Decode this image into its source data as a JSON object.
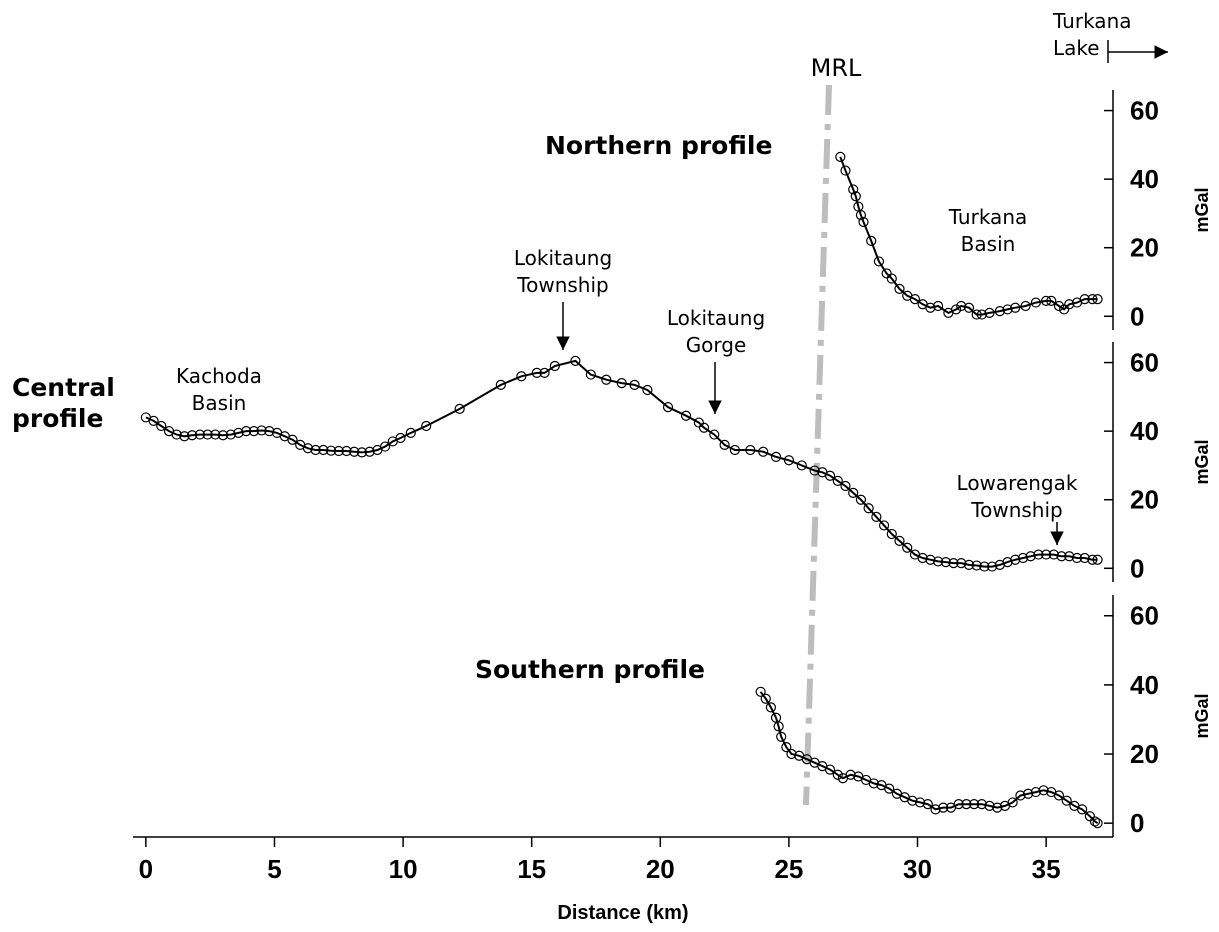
{
  "chart_data": [
    {
      "type": "line",
      "title": "Northern profile",
      "ylabel": "mGal",
      "annotations": [
        "Turkana Basin",
        "MRL",
        "Turkana Lake"
      ],
      "xlim": [
        -0.5,
        37.6
      ],
      "ylim": [
        -4,
        66
      ],
      "yticks": [
        0,
        20,
        40,
        60
      ],
      "series": [
        {
          "name": "Northern",
          "color": "#000000",
          "x": [
            27.0,
            27.2,
            27.5,
            27.6,
            27.7,
            27.8,
            27.9,
            28.2,
            28.5,
            28.8,
            29.0,
            29.3,
            29.6,
            29.9,
            30.2,
            30.5,
            30.8,
            31.2,
            31.5,
            31.7,
            32.0,
            32.3,
            32.5,
            32.8,
            33.2,
            33.5,
            33.8,
            34.2,
            34.6,
            35.0,
            35.2,
            35.5,
            35.7,
            35.9,
            36.2,
            36.5,
            36.8,
            37.0
          ],
          "values": [
            46.5,
            42.5,
            37,
            35,
            32,
            29.5,
            27.5,
            22,
            16,
            12.5,
            11,
            8,
            6,
            5,
            3.5,
            2.5,
            3,
            1,
            2,
            3,
            2.5,
            0.5,
            0.5,
            1,
            1.5,
            2,
            2.5,
            3,
            4,
            4.5,
            4.5,
            3,
            2,
            3.5,
            4,
            5,
            5,
            5
          ]
        }
      ]
    },
    {
      "type": "line",
      "title": "Central profile",
      "ylabel": "mGal",
      "annotations": [
        "Kachoda Basin",
        "Lokitaung Township",
        "Lokitaung Gorge",
        "Lowarengak Township"
      ],
      "xlim": [
        -0.5,
        37.6
      ],
      "ylim": [
        -4,
        66
      ],
      "yticks": [
        0,
        20,
        40,
        60
      ],
      "series": [
        {
          "name": "Central",
          "color": "#000000",
          "x": [
            0,
            0.3,
            0.6,
            0.9,
            1.2,
            1.5,
            1.8,
            2.1,
            2.4,
            2.7,
            3.0,
            3.3,
            3.6,
            3.9,
            4.2,
            4.5,
            4.8,
            5.1,
            5.4,
            5.7,
            6.0,
            6.3,
            6.6,
            6.9,
            7.2,
            7.5,
            7.8,
            8.1,
            8.4,
            8.7,
            9.0,
            9.3,
            9.6,
            9.9,
            10.3,
            10.9,
            12.2,
            13.8,
            14.6,
            15.2,
            15.5,
            15.9,
            16.7,
            17.3,
            17.9,
            18.5,
            19.0,
            19.5,
            20.3,
            21.0,
            21.5,
            21.7,
            22.1,
            22.5,
            22.9,
            23.5,
            24.0,
            24.5,
            25.0,
            25.5,
            26.0,
            26.3,
            26.6,
            26.9,
            27.2,
            27.5,
            27.8,
            28.1,
            28.4,
            28.7,
            29.0,
            29.3,
            29.6,
            29.9,
            30.2,
            30.5,
            30.8,
            31.1,
            31.4,
            31.7,
            32.0,
            32.3,
            32.6,
            32.9,
            33.2,
            33.5,
            33.8,
            34.1,
            34.4,
            34.7,
            35.0,
            35.3,
            35.6,
            35.9,
            36.2,
            36.5,
            36.8,
            37.0
          ],
          "values": [
            44,
            43,
            41.5,
            40,
            39,
            38.5,
            38.8,
            39,
            39,
            39,
            38.8,
            39,
            39.5,
            40,
            40,
            40.2,
            40,
            39.5,
            38.5,
            37.5,
            36,
            35,
            34.5,
            34.5,
            34.3,
            34.2,
            34.2,
            34,
            33.8,
            34,
            34.5,
            35.5,
            37,
            38,
            39.5,
            41.5,
            46.5,
            53.5,
            56,
            57,
            57,
            59,
            60.5,
            56.5,
            55,
            54,
            53.5,
            52,
            47,
            44.5,
            42.5,
            41,
            39,
            36,
            34.5,
            34.5,
            34,
            32.5,
            31.5,
            30,
            28.5,
            28,
            27,
            25.5,
            24,
            22,
            20,
            17.5,
            15,
            12.5,
            10,
            8,
            6,
            4,
            3,
            2.5,
            2,
            1.8,
            1.5,
            1.5,
            1,
            0.8,
            0.5,
            0.5,
            1,
            1.8,
            2.5,
            3,
            3.5,
            4,
            4,
            4,
            3.5,
            3.5,
            3,
            3,
            2.5,
            2.5
          ]
        }
      ]
    },
    {
      "type": "line",
      "title": "Southern profile",
      "ylabel": "mGal",
      "xlabel": "Distance (km)",
      "xlim": [
        -0.5,
        37.6
      ],
      "xticks": [
        0,
        5,
        10,
        15,
        20,
        25,
        30,
        35
      ],
      "ylim": [
        -4,
        66
      ],
      "yticks": [
        0,
        20,
        40,
        60
      ],
      "series": [
        {
          "name": "Southern",
          "color": "#000000",
          "x": [
            23.9,
            24.1,
            24.3,
            24.5,
            24.6,
            24.7,
            24.9,
            25.1,
            25.4,
            25.7,
            26.0,
            26.3,
            26.6,
            26.9,
            27.1,
            27.4,
            27.7,
            28.0,
            28.3,
            28.6,
            28.9,
            29.2,
            29.5,
            29.8,
            30.1,
            30.4,
            30.7,
            31.0,
            31.3,
            31.6,
            31.9,
            32.2,
            32.5,
            32.8,
            33.1,
            33.4,
            33.7,
            34.0,
            34.3,
            34.6,
            34.9,
            35.2,
            35.5,
            35.8,
            36.1,
            36.4,
            36.7,
            36.9,
            37.0
          ],
          "values": [
            38,
            36,
            33.5,
            30.5,
            28,
            25,
            22,
            20,
            19.5,
            18.5,
            17.5,
            16.5,
            15.5,
            14,
            13,
            14,
            13.5,
            12.5,
            11.5,
            11,
            10,
            8.5,
            7.5,
            6.5,
            6,
            5.5,
            4,
            4.5,
            4.5,
            5.5,
            5.5,
            5.5,
            5.5,
            5,
            4.5,
            5,
            6,
            8,
            8.5,
            9,
            9.5,
            9,
            8,
            6.5,
            5,
            4,
            2,
            0.5,
            0
          ]
        }
      ]
    }
  ]
}
